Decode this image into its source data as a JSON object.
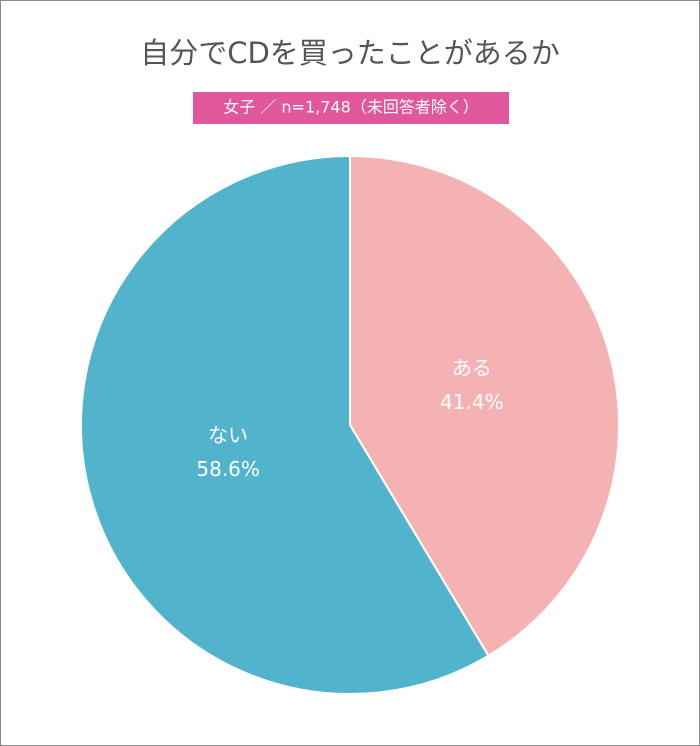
{
  "chart_data": {
    "type": "pie",
    "title": "自分でCDを買ったことがあるか",
    "subtitle": "女子 ／ n=1,748（未回答者除く）",
    "categories": [
      "ある",
      "ない"
    ],
    "values": [
      41.4,
      58.6
    ],
    "value_labels": [
      "41.4%",
      "58.6%"
    ],
    "colors": [
      "#f4b2b3",
      "#52b3cd"
    ]
  }
}
